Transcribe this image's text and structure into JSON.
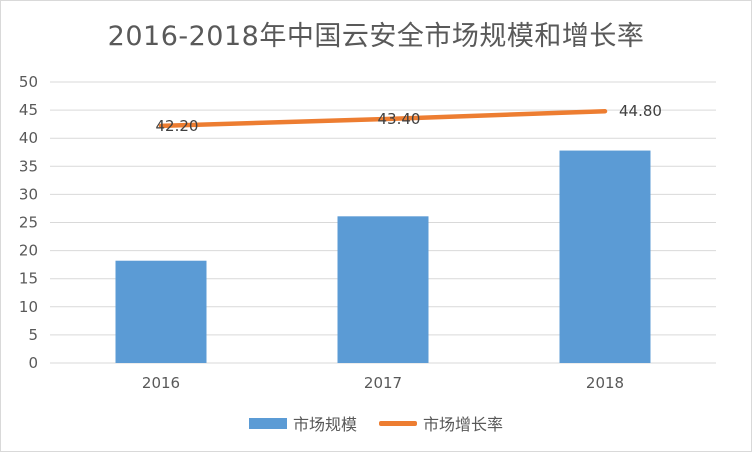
{
  "chart_data": {
    "type": "bar",
    "title": "2016-2018年中国云安全市场规模和增长率",
    "categories": [
      "2016",
      "2017",
      "2018"
    ],
    "ylim": [
      0,
      50
    ],
    "yticks": [
      "0",
      "5",
      "10",
      "15",
      "20",
      "25",
      "30",
      "35",
      "40",
      "45",
      "50"
    ],
    "grid": true,
    "legend_position": "bottom",
    "series": [
      {
        "name": "市场规模",
        "kind": "bar",
        "color": "#5b9bd5",
        "values": [
          18.2,
          26.1,
          37.8
        ]
      },
      {
        "name": "市场增长率",
        "kind": "line",
        "color": "#ed7d31",
        "values": [
          42.2,
          43.4,
          44.8
        ],
        "labels": [
          "42.20",
          "43.40",
          "44.80"
        ]
      }
    ]
  }
}
